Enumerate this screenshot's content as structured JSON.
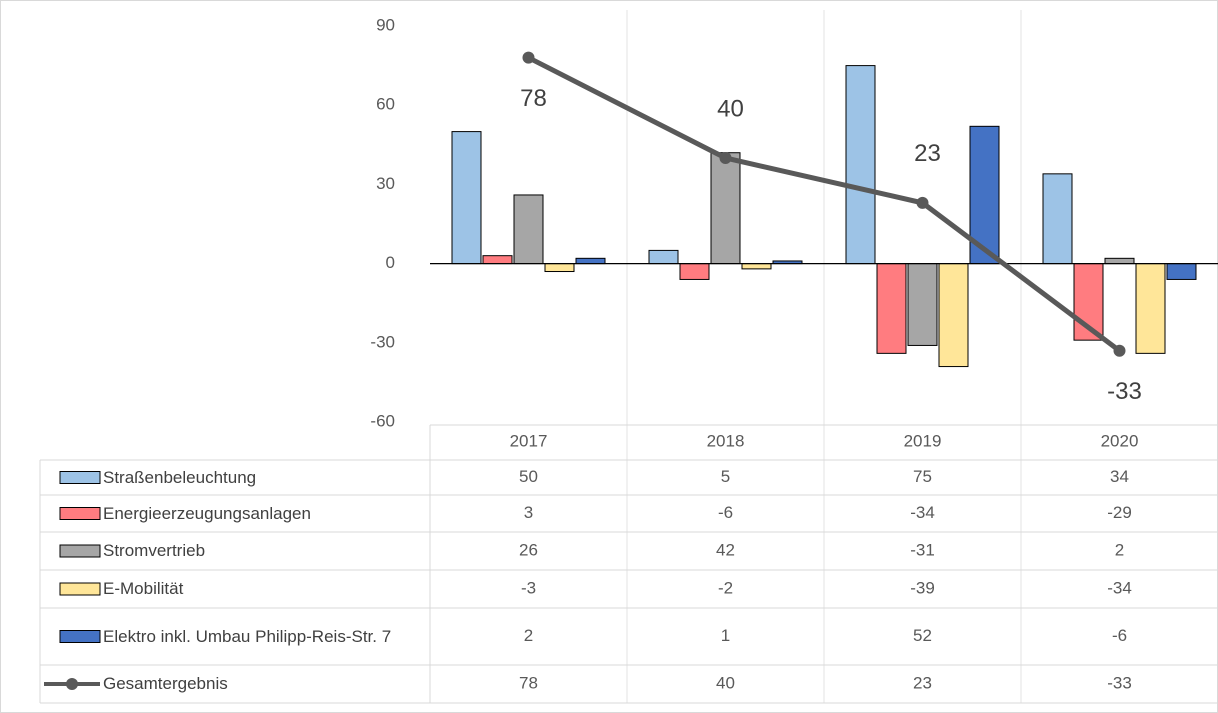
{
  "chart_data": {
    "type": "bar",
    "categories": [
      "2017",
      "2018",
      "2019",
      "2020"
    ],
    "series": [
      {
        "name": "Straßenbeleuchtung",
        "color": "#9dc3e6",
        "values": [
          50,
          5,
          75,
          34
        ]
      },
      {
        "name": "Energieerzeugungsanlagen",
        "color": "#ff7c80",
        "values": [
          3,
          -6,
          -34,
          -29
        ]
      },
      {
        "name": "Stromvertrieb",
        "color": "#a6a6a6",
        "values": [
          26,
          42,
          -31,
          2
        ]
      },
      {
        "name": "E-Mobilität",
        "color": "#ffe699",
        "values": [
          -3,
          -2,
          -39,
          -34
        ]
      },
      {
        "name": "Elektro inkl. Umbau Philipp-Reis-Str. 7",
        "color": "#4472c4",
        "values": [
          2,
          1,
          52,
          -6
        ]
      },
      {
        "name": "Gesamtergebnis",
        "color": "#595959",
        "type": "line",
        "values": [
          78,
          40,
          23,
          -33
        ]
      }
    ],
    "ylim": [
      -60,
      90
    ],
    "yticks": [
      -60,
      -30,
      0,
      30,
      60,
      90
    ],
    "data_table": true
  }
}
